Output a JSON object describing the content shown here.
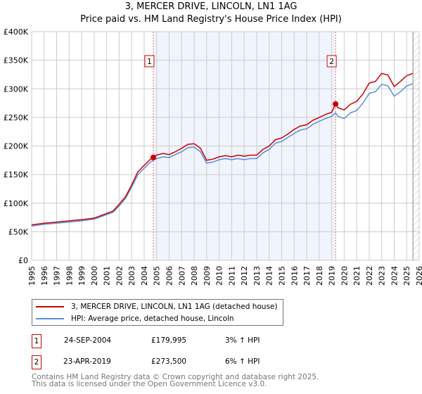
{
  "chart_data": {
    "type": "line",
    "title": "3, MERCER DRIVE, LINCOLN, LN1 1AG",
    "subtitle": "Price paid vs. HM Land Registry's House Price Index (HPI)",
    "xlim": [
      1995,
      2026
    ],
    "ylim": [
      0,
      400000
    ],
    "y_ticks": [
      {
        "v": 0,
        "label": "£0"
      },
      {
        "v": 50000,
        "label": "£50K"
      },
      {
        "v": 100000,
        "label": "£100K"
      },
      {
        "v": 150000,
        "label": "£150K"
      },
      {
        "v": 200000,
        "label": "£200K"
      },
      {
        "v": 250000,
        "label": "£250K"
      },
      {
        "v": 300000,
        "label": "£300K"
      },
      {
        "v": 350000,
        "label": "£350K"
      },
      {
        "v": 400000,
        "label": "£400K"
      }
    ],
    "x_ticks": [
      "1995",
      "1996",
      "1997",
      "1998",
      "1999",
      "2000",
      "2001",
      "2002",
      "2003",
      "2004",
      "2005",
      "2006",
      "2007",
      "2008",
      "2009",
      "2010",
      "2011",
      "2012",
      "2013",
      "2014",
      "2015",
      "2016",
      "2017",
      "2018",
      "2019",
      "2020",
      "2021",
      "2022",
      "2023",
      "2024",
      "2025",
      "2026"
    ],
    "grid": true,
    "shaded_range": [
      2004.73,
      2019.31
    ],
    "hatched_from": 2025.5,
    "series": [
      {
        "name": "3, MERCER DRIVE, LINCOLN, LN1 1AG (detached house)",
        "color": "#cc0000",
        "x": [
          1995,
          1996,
          1997,
          1998,
          1999,
          2000,
          2001,
          2001.5,
          2002,
          2002.5,
          2003,
          2003.5,
          2004,
          2004.5,
          2004.73,
          2005,
          2005.5,
          2006,
          2006.5,
          2007,
          2007.5,
          2008,
          2008.5,
          2009,
          2009.5,
          2010,
          2010.5,
          2011,
          2011.5,
          2012,
          2012.5,
          2013,
          2013.5,
          2014,
          2014.5,
          2015,
          2015.5,
          2016,
          2016.5,
          2017,
          2017.5,
          2018,
          2018.5,
          2019,
          2019.31,
          2019.5,
          2020,
          2020.5,
          2021,
          2021.5,
          2022,
          2022.5,
          2023,
          2023.5,
          2024,
          2024.5,
          2025,
          2025.5
        ],
        "y": [
          62000,
          65000,
          67000,
          69000,
          71000,
          74000,
          82000,
          86000,
          98000,
          111000,
          132000,
          155000,
          166000,
          177000,
          179995,
          184000,
          187000,
          185000,
          190000,
          196000,
          203000,
          204000,
          196000,
          175000,
          177000,
          181000,
          183000,
          181000,
          184000,
          182000,
          184000,
          184000,
          194000,
          200000,
          211000,
          214000,
          221000,
          229000,
          235000,
          237000,
          245000,
          250000,
          255000,
          259000,
          273500,
          267000,
          263000,
          273000,
          278000,
          291000,
          310000,
          313000,
          327000,
          324000,
          304000,
          313000,
          323000,
          327000
        ]
      },
      {
        "name": "HPI: Average price, detached house, Lincoln",
        "color": "#5b8fd6",
        "x": [
          1995,
          1996,
          1997,
          1998,
          1999,
          2000,
          2001,
          2001.5,
          2002,
          2002.5,
          2003,
          2003.5,
          2004,
          2004.5,
          2004.73,
          2005,
          2005.5,
          2006,
          2006.5,
          2007,
          2007.5,
          2008,
          2008.5,
          2009,
          2009.5,
          2010,
          2010.5,
          2011,
          2011.5,
          2012,
          2012.5,
          2013,
          2013.5,
          2014,
          2014.5,
          2015,
          2015.5,
          2016,
          2016.5,
          2017,
          2017.5,
          2018,
          2018.5,
          2019,
          2019.31,
          2019.5,
          2020,
          2020.5,
          2021,
          2021.5,
          2022,
          2022.5,
          2023,
          2023.5,
          2024,
          2024.5,
          2025,
          2025.5
        ],
        "y": [
          60000,
          63000,
          65000,
          67000,
          69000,
          72000,
          80000,
          84000,
          95000,
          108000,
          128000,
          150000,
          161000,
          172000,
          175000,
          178000,
          181000,
          180000,
          185000,
          190000,
          197000,
          198000,
          190000,
          170000,
          172000,
          176000,
          178000,
          176000,
          178000,
          176000,
          178000,
          178000,
          188000,
          194000,
          205000,
          208000,
          215000,
          222000,
          228000,
          230000,
          238000,
          243000,
          248000,
          252000,
          258000,
          252000,
          248000,
          258000,
          262000,
          275000,
          292000,
          295000,
          308000,
          305000,
          287000,
          295000,
          305000,
          309000
        ]
      }
    ],
    "sales": [
      {
        "label": "1",
        "x": 2004.73,
        "y": 179995
      },
      {
        "label": "2",
        "x": 2019.31,
        "y": 273500
      }
    ]
  },
  "legend": [
    "3, MERCER DRIVE, LINCOLN, LN1 1AG (detached house)",
    "HPI: Average price, detached house, Lincoln"
  ],
  "transactions": [
    {
      "num": "1",
      "date": "24-SEP-2004",
      "price": "£179,995",
      "hpi": "3% ↑ HPI"
    },
    {
      "num": "2",
      "date": "23-APR-2019",
      "price": "£273,500",
      "hpi": "6% ↑ HPI"
    }
  ],
  "footer": [
    "Contains HM Land Registry data © Crown copyright and database right 2025.",
    "This data is licensed under the Open Government Licence v3.0."
  ]
}
